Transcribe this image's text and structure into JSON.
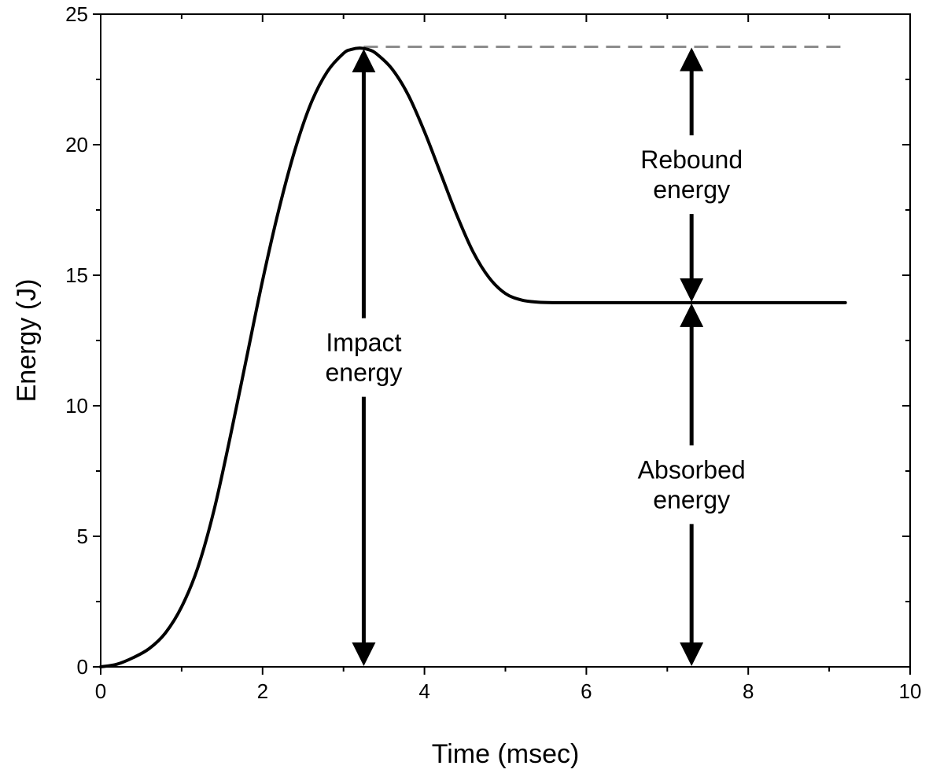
{
  "chart_data": {
    "type": "line",
    "title": "",
    "xlabel": "Time (msec)",
    "ylabel": "Energy (J)",
    "xlim": [
      0,
      10
    ],
    "ylim": [
      0,
      25
    ],
    "x_ticks": [
      0,
      2,
      4,
      6,
      8,
      10
    ],
    "y_ticks": [
      0,
      5,
      10,
      15,
      20,
      25
    ],
    "grid": false,
    "series": [
      {
        "name": "Energy",
        "color": "#000000",
        "x": [
          0,
          0.2,
          0.4,
          0.6,
          0.8,
          1.0,
          1.2,
          1.4,
          1.6,
          1.8,
          2.0,
          2.2,
          2.4,
          2.6,
          2.8,
          3.0,
          3.1,
          3.2,
          3.3,
          3.4,
          3.6,
          3.8,
          4.0,
          4.2,
          4.4,
          4.6,
          4.8,
          5.0,
          5.2,
          5.4,
          5.6,
          6.0,
          7.0,
          8.0,
          9.2
        ],
        "y": [
          0,
          0.1,
          0.35,
          0.7,
          1.3,
          2.3,
          3.8,
          6.0,
          8.8,
          11.8,
          14.8,
          17.5,
          19.8,
          21.6,
          22.8,
          23.5,
          23.65,
          23.7,
          23.65,
          23.5,
          22.9,
          21.9,
          20.5,
          18.9,
          17.3,
          15.9,
          14.9,
          14.3,
          14.05,
          13.97,
          13.95,
          13.95,
          13.95,
          13.95,
          13.95
        ]
      }
    ],
    "reference_line": {
      "y": 23.75,
      "x_start": 3.25,
      "x_end": 9.2,
      "style": "dashed",
      "color": "#8c8c8c"
    },
    "annotations": [
      {
        "id": "impact",
        "lines": [
          "Impact",
          "energy"
        ],
        "x": 3.25,
        "y_from": 0,
        "y_to": 23.7
      },
      {
        "id": "rebound",
        "lines": [
          "Rebound",
          "energy"
        ],
        "x": 7.3,
        "y_from": 13.95,
        "y_to": 23.75
      },
      {
        "id": "absorbed",
        "lines": [
          "Absorbed",
          "energy"
        ],
        "x": 7.3,
        "y_from": 0,
        "y_to": 13.95
      }
    ]
  }
}
